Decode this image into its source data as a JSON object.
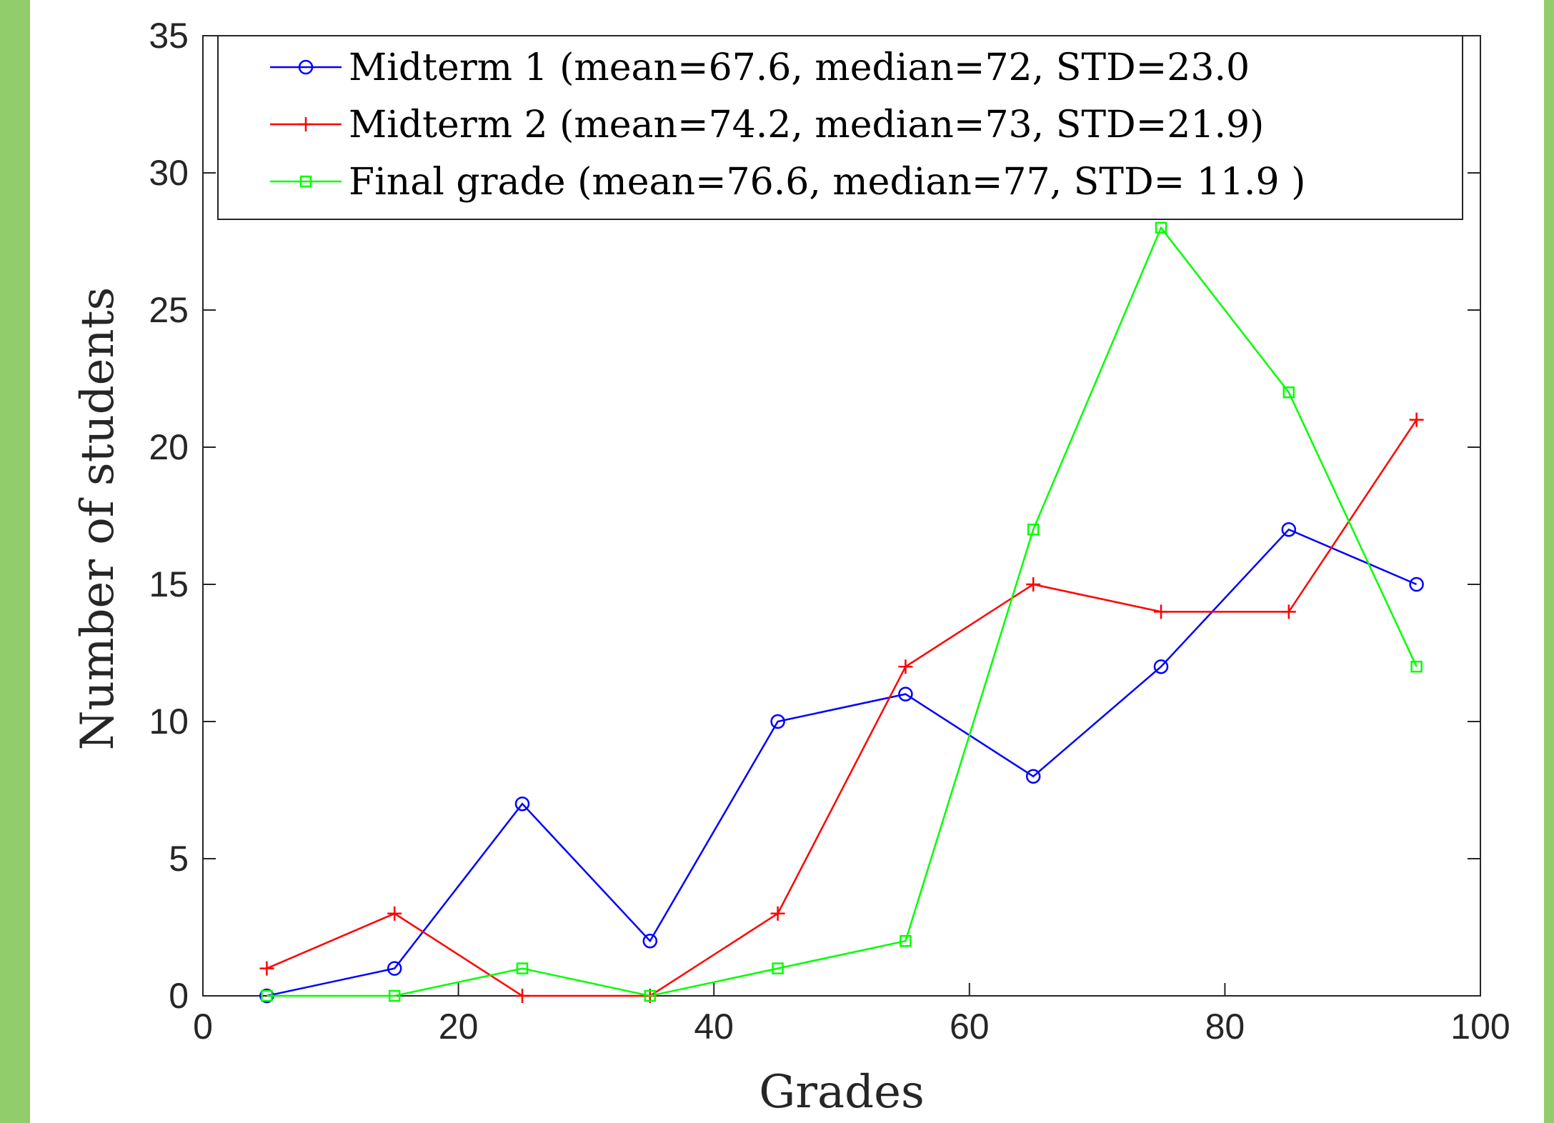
{
  "chart_data": {
    "type": "line",
    "xlabel": "Grades",
    "ylabel": "Number of students",
    "xlim": [
      0,
      100
    ],
    "ylim": [
      0,
      35
    ],
    "xticks": [
      0,
      20,
      40,
      60,
      80,
      100
    ],
    "yticks": [
      0,
      5,
      10,
      15,
      20,
      25,
      30,
      35
    ],
    "grid": false,
    "legend_position": "top",
    "x": [
      5,
      15,
      25,
      35,
      45,
      55,
      65,
      75,
      85,
      95
    ],
    "series": [
      {
        "name": "Midterm 1 (mean=67.6, median=72, STD=23.0",
        "color": "#0000ff",
        "marker": "circle",
        "values": [
          0,
          1,
          7,
          2,
          10,
          11,
          8,
          12,
          17,
          15
        ]
      },
      {
        "name": "Midterm 2 (mean=74.2, median=73, STD=21.9)",
        "color": "#ff0000",
        "marker": "plus",
        "values": [
          1,
          3,
          0,
          0,
          3,
          12,
          15,
          14,
          14,
          21
        ]
      },
      {
        "name": "Final grade (mean=76.6, median=77, STD= 11.9 )",
        "color": "#00ff00",
        "marker": "square",
        "values": [
          0,
          0,
          1,
          0,
          1,
          2,
          17,
          28,
          22,
          12
        ]
      }
    ]
  }
}
